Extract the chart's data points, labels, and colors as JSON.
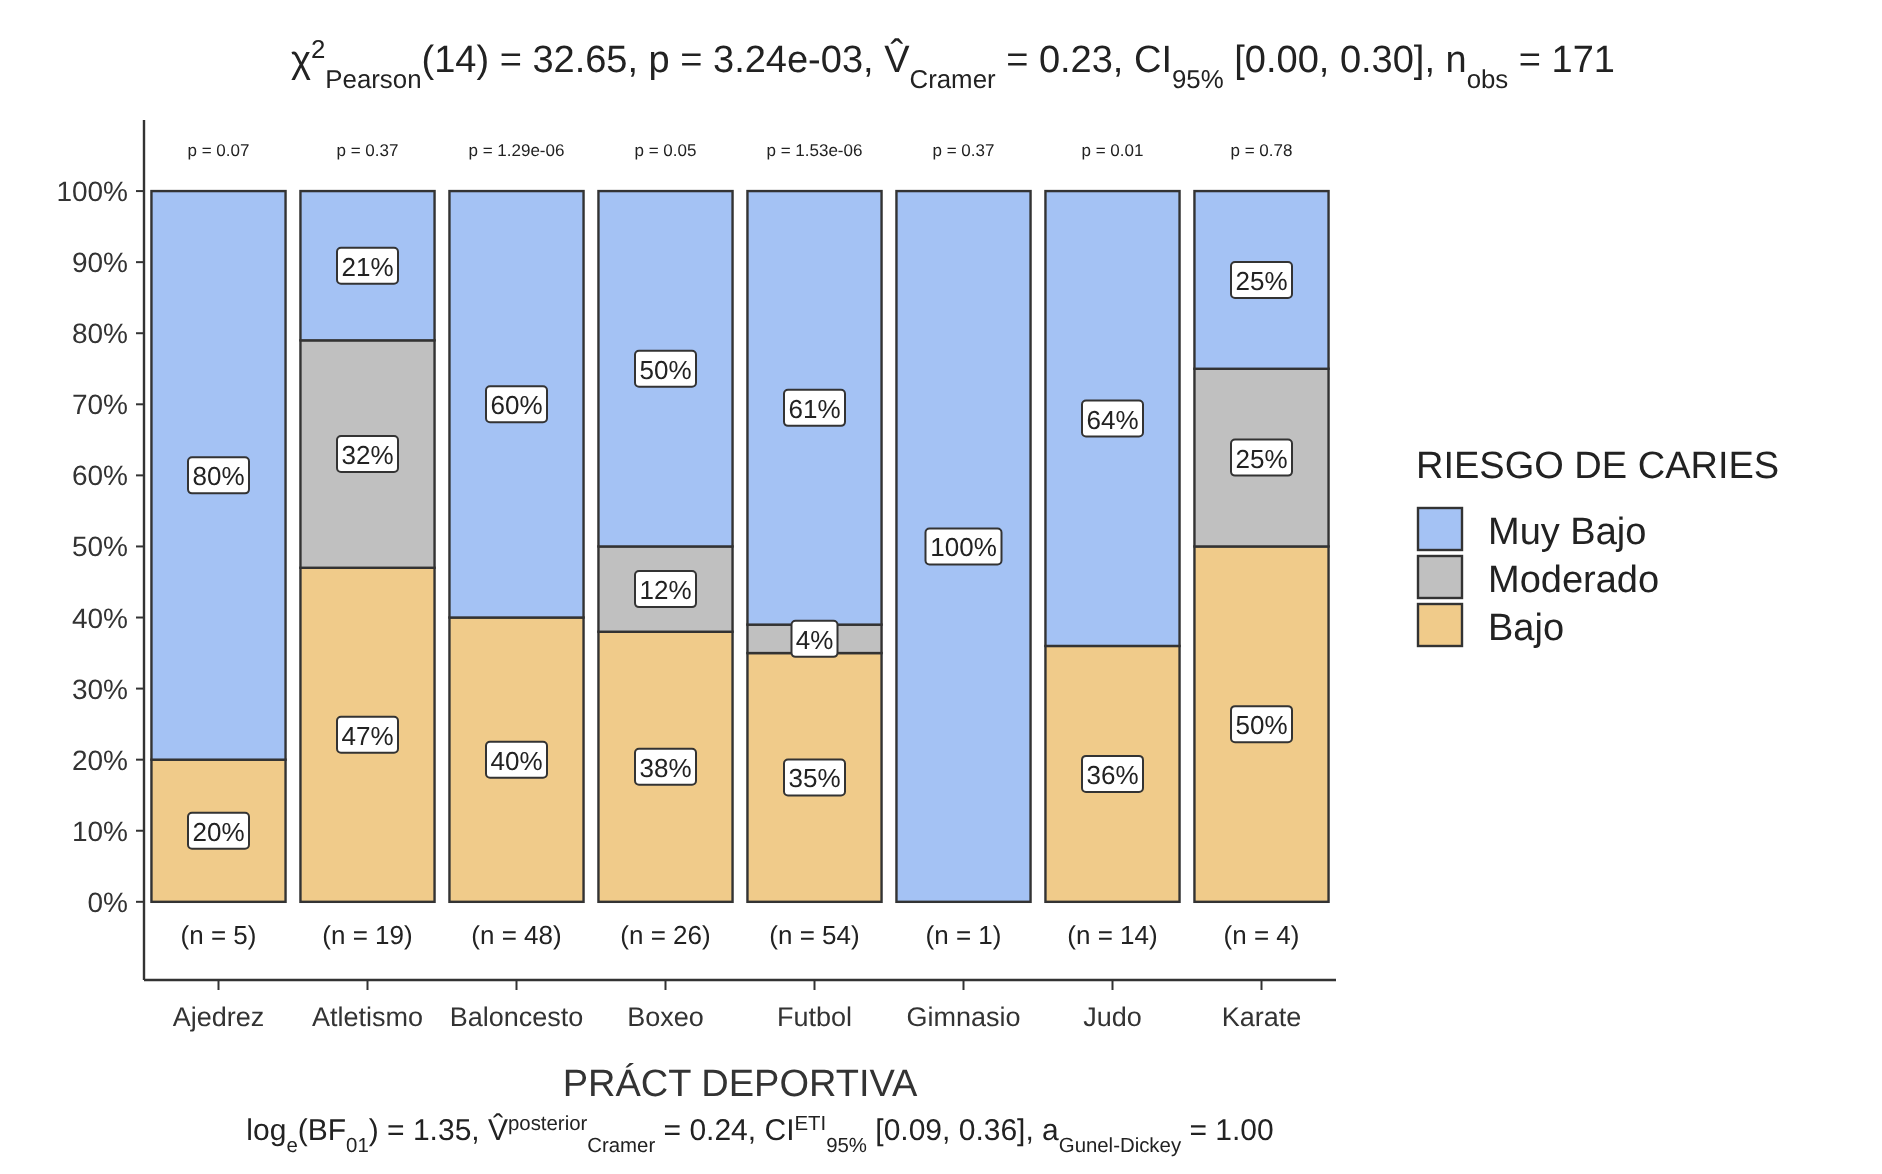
{
  "chart_data": {
    "type": "bar",
    "stacked": true,
    "title": "χ$^{2}$$_{Pearson}$(14) = 32.65, p = 3.24e-03, V̂$_{Cramer}$ = 0.23, CI$_{95%}$ [0.00, 0.30], n$_{obs}$ = 171",
    "xlabel": "PRÁCT DEPORTIVA",
    "legend_title": "RIESGO DE CARIES",
    "legend": "right",
    "categories": [
      "Ajedrez",
      "Atletismo",
      "Baloncesto",
      "Boxeo",
      "Futbol",
      "Gimnasio",
      "Judo",
      "Karate"
    ],
    "series": [
      {
        "name": "Bajo",
        "color": "#f0cb8a",
        "values": [
          20,
          47,
          40,
          38,
          35,
          0,
          36,
          50
        ],
        "value_labels": [
          "20%",
          "47%",
          "40%",
          "38%",
          "35%",
          null,
          "36%",
          "50%"
        ]
      },
      {
        "name": "Moderado",
        "color": "#c0c0c0",
        "values": [
          0,
          32,
          0,
          12,
          4,
          0,
          0,
          25
        ],
        "value_labels": [
          null,
          "32%",
          null,
          "12%",
          "4%",
          null,
          null,
          "25%"
        ]
      },
      {
        "name": "Muy Bajo",
        "color": "#a4c2f4",
        "values": [
          80,
          21,
          60,
          50,
          61,
          100,
          64,
          25
        ],
        "value_labels": [
          "80%",
          "21%",
          "60%",
          "50%",
          "61%",
          "100%",
          "64%",
          "25%"
        ]
      }
    ],
    "ylim": [
      -11,
      110
    ],
    "yticks": [
      {
        "value": 0,
        "label": "0%"
      },
      {
        "value": 10,
        "label": "10%"
      },
      {
        "value": 20,
        "label": "20%"
      },
      {
        "value": 30,
        "label": "30%"
      },
      {
        "value": 40,
        "label": "40%"
      },
      {
        "value": 50,
        "label": "50%"
      },
      {
        "value": 60,
        "label": "60%"
      },
      {
        "value": 70,
        "label": "70%"
      },
      {
        "value": 80,
        "label": "80%"
      },
      {
        "value": 90,
        "label": "90%"
      },
      {
        "value": 100,
        "label": "100%"
      }
    ],
    "annotations": [
      "p = 0.07",
      "p = 0.37",
      "p = 1.29e-06",
      "p = 0.05",
      "p = 1.53e-06",
      "p = 0.37",
      "p = 0.01",
      "p = 0.78",
      "(n = 5)",
      "(n = 19)",
      "(n = 48)",
      "(n = 26)",
      "(n = 54)",
      "(n = 1)",
      "(n = 14)",
      "(n = 4)",
      "log$_{e}$(BF$_{01}$) = 1.35, V̂$^{posterior}$$_{Cramer}$ = 0.24, CI$^{ETI}$$_{95%}$ [0.09, 0.36], a$_{Gunel-Dickey}$ = 1.00"
    ]
  }
}
